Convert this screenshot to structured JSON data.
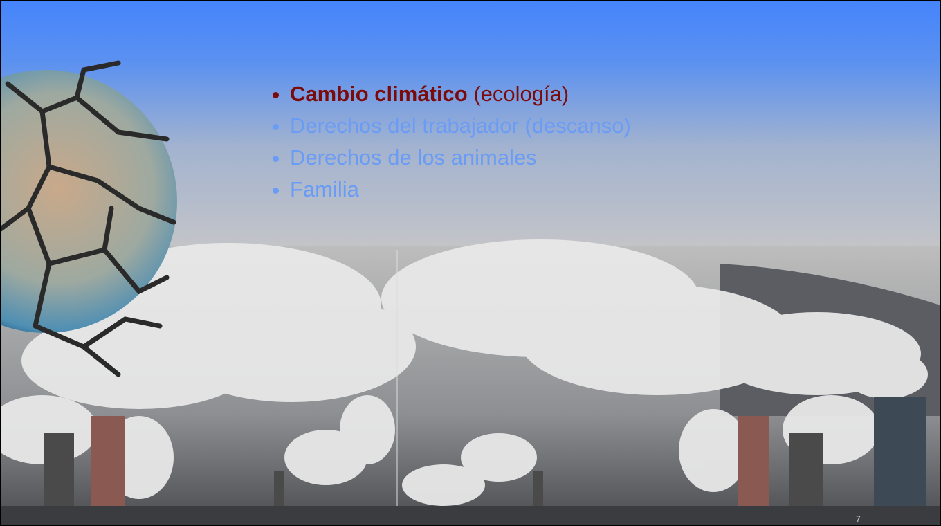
{
  "slide": {
    "bullets": [
      {
        "bold": "Cambio climático",
        "text": "(ecología)"
      },
      {
        "text": "Derechos del trabajador (descanso)"
      },
      {
        "text": "Derechos de los animales"
      },
      {
        "text": "Familia"
      }
    ],
    "page_number": "7"
  }
}
